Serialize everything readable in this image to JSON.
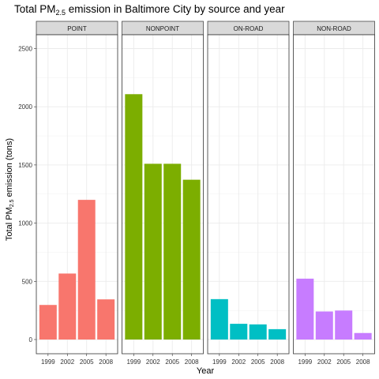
{
  "chart_data": {
    "type": "bar",
    "title": {
      "text": "Total PM",
      "sub": "2.5",
      "rest": " emission in Baltimore City by source and year"
    },
    "ylabel": {
      "text": "Total PM",
      "sub": "2.5",
      "rest": " emission (tons)"
    },
    "xlabel": "Year",
    "categories": [
      "1999",
      "2002",
      "2005",
      "2008"
    ],
    "y_ticks": [
      "0",
      "500",
      "1000",
      "1500",
      "2000",
      "2500"
    ],
    "ylim": [
      0,
      2650
    ],
    "grid": true,
    "facets": [
      {
        "name": "POINT",
        "color": "#F8766D",
        "values": [
          297,
          567,
          1200,
          345
        ]
      },
      {
        "name": "NONPOINT",
        "color": "#7CAE00",
        "values": [
          2108,
          1510,
          1510,
          1373
        ]
      },
      {
        "name": "ON-ROAD",
        "color": "#00BFC4",
        "values": [
          347,
          135,
          130,
          89
        ]
      },
      {
        "name": "NON-ROAD",
        "color": "#C77CFF",
        "values": [
          523,
          241,
          249,
          56
        ]
      }
    ]
  }
}
